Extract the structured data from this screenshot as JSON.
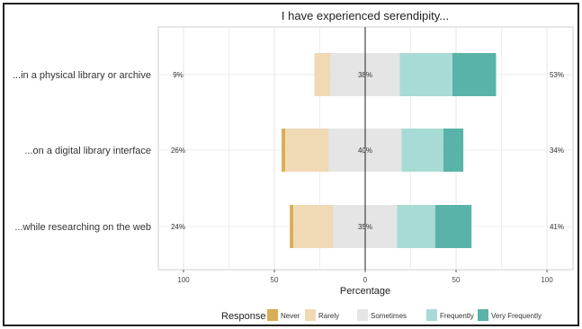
{
  "chart_data": {
    "type": "bar",
    "subtype": "diverging-stacked-likert",
    "title": "I have experienced serendipity...",
    "xlabel": "Percentage",
    "ylabel": "",
    "xlim": [
      -100,
      100
    ],
    "x_ticks": [
      -100,
      -50,
      0,
      50,
      100
    ],
    "x_tick_labels": [
      "100",
      "50",
      "0",
      "50",
      "100"
    ],
    "grid": true,
    "legend": {
      "title": "Response",
      "placement": "bottom",
      "entries": [
        "Never",
        "Rarely",
        "Sometimes",
        "Frequently",
        "Very Frequently"
      ]
    },
    "colors": {
      "Never": "#d9ac58",
      "Rarely": "#f0d9b5",
      "Sometimes": "#e5e5e5",
      "Frequently": "#a8dbd5",
      "Very Frequently": "#5ab3a8"
    },
    "categories": [
      "...in a physical library or archive",
      "...on a digital library interface",
      "...while researching on the web"
    ],
    "series": [
      {
        "name": "Never",
        "values": [
          0,
          2,
          2
        ]
      },
      {
        "name": "Rarely",
        "values": [
          9,
          24,
          22
        ]
      },
      {
        "name": "Sometimes",
        "values": [
          38,
          40,
          35
        ]
      },
      {
        "name": "Frequently",
        "values": [
          29,
          23,
          21
        ]
      },
      {
        "name": "Very Frequently",
        "values": [
          24,
          11,
          20
        ]
      }
    ],
    "summary_labels": {
      "left": [
        "9%",
        "26%",
        "24%"
      ],
      "center": [
        "38%",
        "40%",
        "35%"
      ],
      "right": [
        "53%",
        "34%",
        "41%"
      ]
    }
  }
}
